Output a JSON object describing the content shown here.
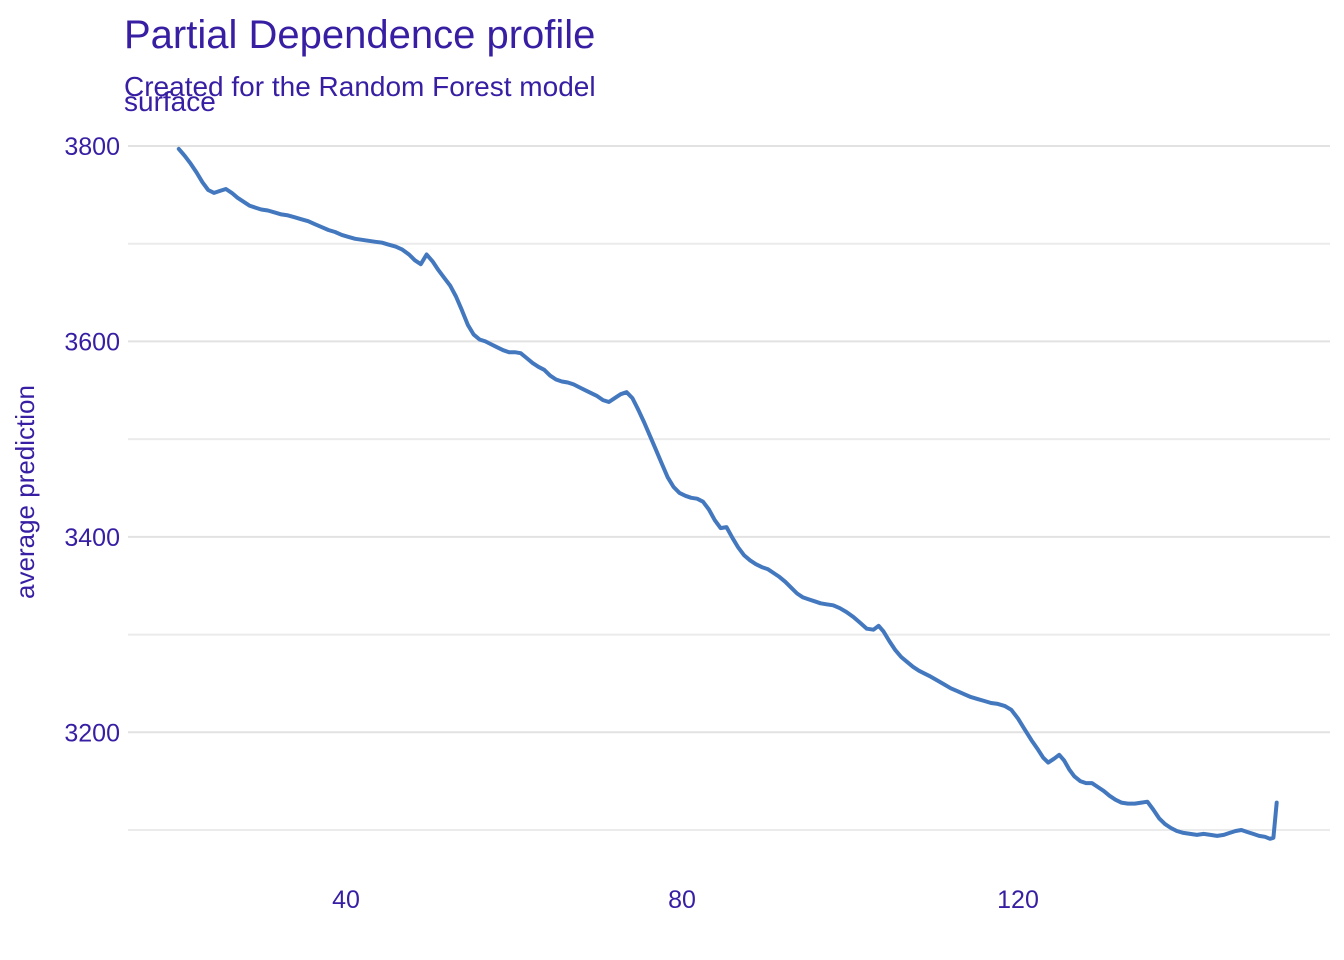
{
  "header": {
    "title": "Partial Dependence profile",
    "subtitle": "Created for the Random Forest model"
  },
  "facet": {
    "label": "surface"
  },
  "colors": {
    "text": "#371ea3",
    "line": "#4378bf",
    "grid_major": "#e2e2e2",
    "grid_minor": "#ebebeb"
  },
  "chart_data": {
    "type": "line",
    "title": "Partial Dependence profile",
    "subtitle": "Created for the Random Forest model",
    "facet_label": "surface",
    "xlabel": "",
    "ylabel": "average prediction",
    "x_ticks": [
      40,
      80,
      120
    ],
    "y_ticks": [
      3800,
      3600,
      3400,
      3200
    ],
    "gridlines_y": [
      3800,
      3700,
      3600,
      3500,
      3400,
      3300,
      3200,
      3100
    ],
    "xlim": [
      18,
      153
    ],
    "ylim": [
      3075,
      3835
    ],
    "legend": "none",
    "grid": "horizontal-only",
    "series": [
      {
        "name": "Random Forest",
        "variable": "surface",
        "points": [
          [
            20.1,
            3797
          ],
          [
            20.8,
            3790
          ],
          [
            21.5,
            3782
          ],
          [
            22.2,
            3773
          ],
          [
            22.9,
            3763
          ],
          [
            23.6,
            3755
          ],
          [
            24.3,
            3752
          ],
          [
            25.0,
            3754
          ],
          [
            25.7,
            3756
          ],
          [
            26.4,
            3752
          ],
          [
            27.1,
            3747
          ],
          [
            27.8,
            3743
          ],
          [
            28.5,
            3739
          ],
          [
            29.2,
            3737
          ],
          [
            29.9,
            3735
          ],
          [
            30.7,
            3734
          ],
          [
            31.5,
            3732
          ],
          [
            32.3,
            3730
          ],
          [
            33.1,
            3729
          ],
          [
            33.9,
            3727
          ],
          [
            34.7,
            3725
          ],
          [
            35.5,
            3723
          ],
          [
            36.3,
            3720
          ],
          [
            37.1,
            3717
          ],
          [
            37.9,
            3714
          ],
          [
            38.7,
            3712
          ],
          [
            39.5,
            3709
          ],
          [
            40.3,
            3707
          ],
          [
            41.1,
            3705
          ],
          [
            41.9,
            3704
          ],
          [
            42.7,
            3703
          ],
          [
            43.5,
            3702
          ],
          [
            44.3,
            3701
          ],
          [
            45.1,
            3699
          ],
          [
            45.9,
            3697
          ],
          [
            46.7,
            3694
          ],
          [
            47.5,
            3689
          ],
          [
            48.2,
            3683
          ],
          [
            48.9,
            3679
          ],
          [
            49.6,
            3689
          ],
          [
            50.3,
            3682
          ],
          [
            51.0,
            3673
          ],
          [
            51.7,
            3665
          ],
          [
            52.4,
            3657
          ],
          [
            53.1,
            3646
          ],
          [
            53.8,
            3632
          ],
          [
            54.5,
            3617
          ],
          [
            55.2,
            3607
          ],
          [
            55.9,
            3602
          ],
          [
            56.6,
            3600
          ],
          [
            57.3,
            3597
          ],
          [
            58.0,
            3594
          ],
          [
            58.7,
            3591
          ],
          [
            59.4,
            3589
          ],
          [
            60.1,
            3589
          ],
          [
            60.8,
            3588
          ],
          [
            61.5,
            3583
          ],
          [
            62.2,
            3578
          ],
          [
            62.9,
            3574
          ],
          [
            63.6,
            3571
          ],
          [
            64.3,
            3565
          ],
          [
            65.0,
            3561
          ],
          [
            65.7,
            3559
          ],
          [
            66.4,
            3558
          ],
          [
            67.1,
            3556
          ],
          [
            67.8,
            3553
          ],
          [
            68.5,
            3550
          ],
          [
            69.2,
            3547
          ],
          [
            69.9,
            3544
          ],
          [
            70.6,
            3540
          ],
          [
            71.3,
            3538
          ],
          [
            72.0,
            3542
          ],
          [
            72.7,
            3546
          ],
          [
            73.4,
            3548
          ],
          [
            74.1,
            3542
          ],
          [
            74.8,
            3530
          ],
          [
            75.5,
            3517
          ],
          [
            76.2,
            3503
          ],
          [
            76.9,
            3489
          ],
          [
            77.6,
            3475
          ],
          [
            78.3,
            3461
          ],
          [
            79.0,
            3451
          ],
          [
            79.7,
            3445
          ],
          [
            80.4,
            3442
          ],
          [
            81.1,
            3440
          ],
          [
            81.8,
            3439
          ],
          [
            82.5,
            3436
          ],
          [
            83.2,
            3428
          ],
          [
            83.9,
            3417
          ],
          [
            84.6,
            3409
          ],
          [
            85.3,
            3410
          ],
          [
            86.0,
            3399
          ],
          [
            86.7,
            3389
          ],
          [
            87.4,
            3381
          ],
          [
            88.1,
            3376
          ],
          [
            88.8,
            3372
          ],
          [
            89.5,
            3369
          ],
          [
            90.2,
            3367
          ],
          [
            90.9,
            3363
          ],
          [
            91.6,
            3359
          ],
          [
            92.3,
            3354
          ],
          [
            93.0,
            3348
          ],
          [
            93.7,
            3342
          ],
          [
            94.4,
            3338
          ],
          [
            95.1,
            3336
          ],
          [
            95.8,
            3334
          ],
          [
            96.5,
            3332
          ],
          [
            97.2,
            3331
          ],
          [
            98.0,
            3330
          ],
          [
            98.8,
            3327
          ],
          [
            99.6,
            3323
          ],
          [
            100.4,
            3318
          ],
          [
            101.2,
            3312
          ],
          [
            102.0,
            3306
          ],
          [
            102.8,
            3305
          ],
          [
            103.4,
            3309
          ],
          [
            104.0,
            3303
          ],
          [
            104.7,
            3293
          ],
          [
            105.4,
            3284
          ],
          [
            106.1,
            3277
          ],
          [
            106.8,
            3272
          ],
          [
            107.5,
            3267
          ],
          [
            108.2,
            3263
          ],
          [
            108.9,
            3260
          ],
          [
            109.6,
            3257
          ],
          [
            110.4,
            3253
          ],
          [
            111.2,
            3249
          ],
          [
            112.0,
            3245
          ],
          [
            112.8,
            3242
          ],
          [
            113.6,
            3239
          ],
          [
            114.4,
            3236
          ],
          [
            115.2,
            3234
          ],
          [
            116.0,
            3232
          ],
          [
            116.8,
            3230
          ],
          [
            117.6,
            3229
          ],
          [
            118.4,
            3227
          ],
          [
            119.2,
            3223
          ],
          [
            120.0,
            3214
          ],
          [
            120.8,
            3203
          ],
          [
            121.6,
            3192
          ],
          [
            122.4,
            3182
          ],
          [
            123.0,
            3174
          ],
          [
            123.6,
            3169
          ],
          [
            124.3,
            3173
          ],
          [
            124.9,
            3177
          ],
          [
            125.5,
            3171
          ],
          [
            126.1,
            3162
          ],
          [
            126.7,
            3155
          ],
          [
            127.4,
            3150
          ],
          [
            128.1,
            3148
          ],
          [
            128.8,
            3148
          ],
          [
            129.5,
            3144
          ],
          [
            130.2,
            3140
          ],
          [
            130.9,
            3135
          ],
          [
            131.6,
            3131
          ],
          [
            132.3,
            3128
          ],
          [
            133.1,
            3127
          ],
          [
            133.9,
            3127
          ],
          [
            134.7,
            3128
          ],
          [
            135.4,
            3129
          ],
          [
            136.1,
            3121
          ],
          [
            136.8,
            3112
          ],
          [
            137.5,
            3106
          ],
          [
            138.2,
            3102
          ],
          [
            138.9,
            3099
          ],
          [
            139.7,
            3097
          ],
          [
            140.5,
            3096
          ],
          [
            141.3,
            3095
          ],
          [
            142.1,
            3096
          ],
          [
            142.9,
            3095
          ],
          [
            143.7,
            3094
          ],
          [
            144.5,
            3095
          ],
          [
            145.2,
            3097
          ],
          [
            145.9,
            3099
          ],
          [
            146.6,
            3100
          ],
          [
            147.3,
            3098
          ],
          [
            148.0,
            3096
          ],
          [
            148.7,
            3094
          ],
          [
            149.4,
            3093
          ],
          [
            150.0,
            3091
          ],
          [
            150.4,
            3092
          ],
          [
            150.8,
            3128
          ]
        ]
      }
    ]
  }
}
